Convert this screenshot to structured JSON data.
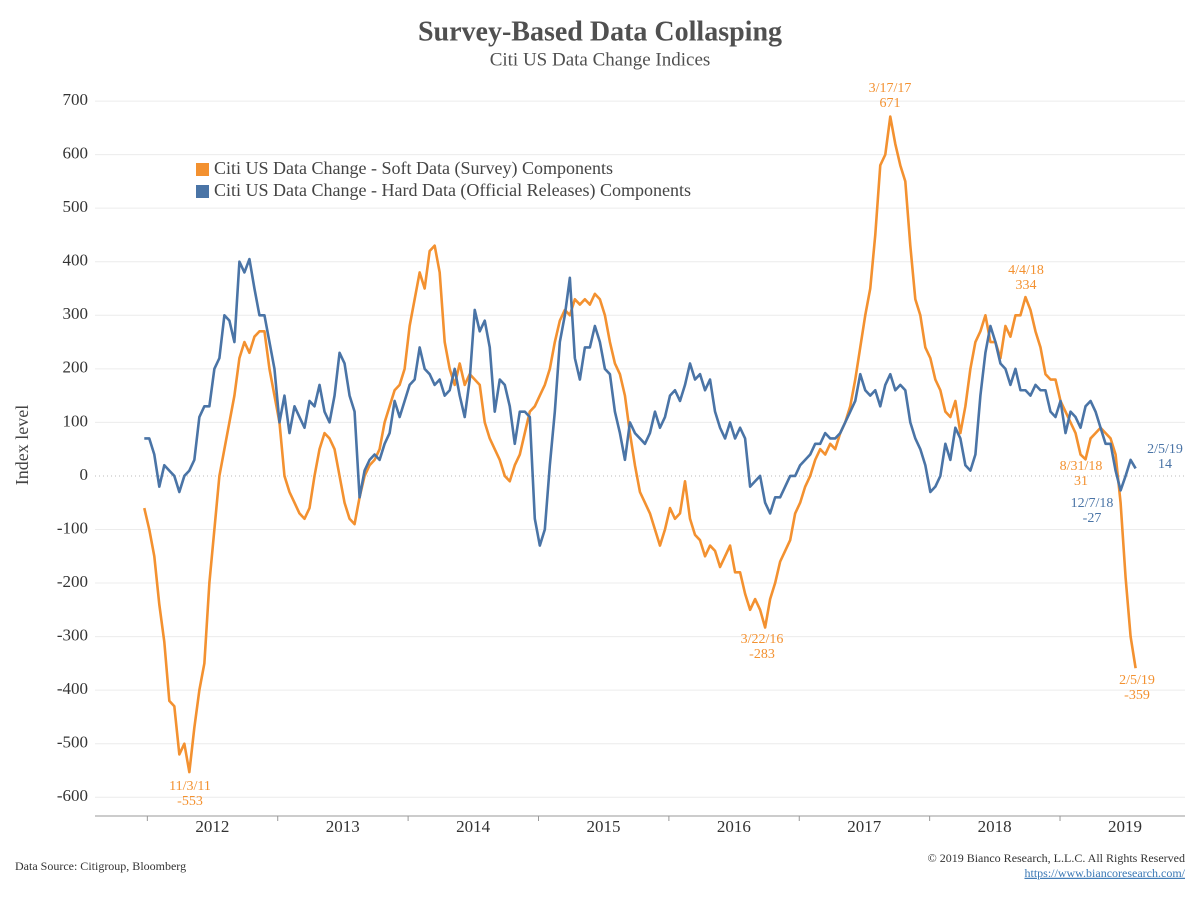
{
  "chart_data": {
    "type": "line",
    "title": "Survey-Based Data Collasping",
    "subtitle": "Citi US Data Change Indices",
    "y_label": "Index level",
    "source": "Data Source: Citigroup, Bloomberg",
    "copyright": "© 2019 Bianco Research, L.L.C. All Rights Reserved",
    "url": "https://www.biancoresearch.com/",
    "xlim": [
      2011.1,
      2019.46
    ],
    "xticks": [
      2012,
      2013,
      2014,
      2015,
      2016,
      2017,
      2018,
      2019
    ],
    "ylim": [
      -635,
      730
    ],
    "yticks": [
      -600,
      -500,
      -400,
      -300,
      -200,
      -100,
      0,
      100,
      200,
      300,
      400,
      500,
      600,
      700
    ],
    "grid": true,
    "legend": "upper left",
    "x": [
      2011.478,
      2011.5164,
      2011.5548,
      2011.5932,
      2011.6316,
      2011.67,
      2011.7084,
      2011.7468,
      2011.7852,
      2011.8236,
      2011.862,
      2011.9004,
      2011.9388,
      2011.9772,
      2012.0156,
      2012.054,
      2012.0924,
      2012.1308,
      2012.1692,
      2012.2076,
      2012.246,
      2012.2844,
      2012.3228,
      2012.3612,
      2012.3996,
      2012.438,
      2012.4764,
      2012.5148,
      2012.5532,
      2012.5916,
      2012.63,
      2012.6684,
      2012.7068,
      2012.7452,
      2012.7836,
      2012.822,
      2012.8604,
      2012.8988,
      2012.9372,
      2012.9756,
      2013.014,
      2013.0524,
      2013.0908,
      2013.1292,
      2013.1676,
      2013.206,
      2013.2444,
      2013.2828,
      2013.3212,
      2013.3596,
      2013.398,
      2013.4364,
      2013.4748,
      2013.5132,
      2013.5516,
      2013.59,
      2013.6284,
      2013.6668,
      2013.7052,
      2013.7436,
      2013.782,
      2013.8204,
      2013.8588,
      2013.8972,
      2013.9356,
      2013.974,
      2014.0124,
      2014.0508,
      2014.0892,
      2014.1276,
      2014.166,
      2014.2044,
      2014.2428,
      2014.2812,
      2014.3196,
      2014.358,
      2014.3964,
      2014.4348,
      2014.4732,
      2014.5116,
      2014.55,
      2014.5884,
      2014.6268,
      2014.6652,
      2014.7036,
      2014.742,
      2014.7804,
      2014.8188,
      2014.8572,
      2014.8956,
      2014.934,
      2014.9724,
      2015.0108,
      2015.0492,
      2015.0876,
      2015.126,
      2015.1644,
      2015.2028,
      2015.2412,
      2015.2796,
      2015.318,
      2015.3564,
      2015.3948,
      2015.4332,
      2015.4716,
      2015.51,
      2015.5484,
      2015.5868,
      2015.6252,
      2015.6636,
      2015.702,
      2015.7404,
      2015.7788,
      2015.8172,
      2015.8556,
      2015.894,
      2015.9324,
      2015.9708,
      2016.0092,
      2016.0476,
      2016.086,
      2016.1244,
      2016.1628,
      2016.2012,
      2016.2396,
      2016.278,
      2016.3164,
      2016.3548,
      2016.3932,
      2016.4316,
      2016.47,
      2016.5084,
      2016.5468,
      2016.5852,
      2016.6236,
      2016.662,
      2016.7004,
      2016.7388,
      2016.7772,
      2016.8156,
      2016.854,
      2016.8924,
      2016.9308,
      2016.9692,
      2017.0076,
      2017.046,
      2017.0844,
      2017.1228,
      2017.1612,
      2017.1996,
      2017.238,
      2017.2764,
      2017.3148,
      2017.3532,
      2017.3916,
      2017.43,
      2017.4684,
      2017.5068,
      2017.5452,
      2017.5836,
      2017.622,
      2017.6604,
      2017.6988,
      2017.7372,
      2017.7756,
      2017.814,
      2017.8524,
      2017.8908,
      2017.9292,
      2017.9676,
      2018.006,
      2018.0444,
      2018.0828,
      2018.1212,
      2018.1596,
      2018.198,
      2018.2364,
      2018.2748,
      2018.3132,
      2018.3516,
      2018.39,
      2018.4284,
      2018.4668,
      2018.5052,
      2018.5436,
      2018.582,
      2018.6204,
      2018.6588,
      2018.6972,
      2018.7356,
      2018.774,
      2018.8124,
      2018.8508,
      2018.8892,
      2018.9276,
      2018.966,
      2019.0044,
      2019.0428,
      2019.0812
    ],
    "series": [
      {
        "name": "Citi US Data Change - Soft Data (Survey) Components",
        "color": "#f39130",
        "values": [
          -60,
          -100,
          -150,
          -240,
          -310,
          -420,
          -430,
          -520,
          -500,
          -553,
          -470,
          -400,
          -350,
          -200,
          -100,
          0,
          50,
          100,
          150,
          220,
          250,
          230,
          260,
          270,
          270,
          200,
          150,
          100,
          0,
          -30,
          -50,
          -70,
          -80,
          -60,
          0,
          50,
          80,
          70,
          50,
          0,
          -50,
          -80,
          -90,
          -40,
          0,
          20,
          30,
          50,
          100,
          130,
          160,
          170,
          200,
          280,
          330,
          380,
          350,
          420,
          430,
          380,
          250,
          200,
          170,
          210,
          170,
          190,
          180,
          170,
          100,
          70,
          50,
          30,
          0,
          -10,
          20,
          40,
          80,
          120,
          130,
          150,
          170,
          200,
          250,
          290,
          310,
          300,
          330,
          320,
          330,
          320,
          340,
          330,
          300,
          250,
          210,
          190,
          150,
          80,
          20,
          -30,
          -50,
          -70,
          -100,
          -130,
          -100,
          -60,
          -80,
          -70,
          -10,
          -80,
          -110,
          -120,
          -150,
          -130,
          -140,
          -170,
          -150,
          -130,
          -180,
          -180,
          -220,
          -250,
          -230,
          -250,
          -283,
          -230,
          -200,
          -160,
          -140,
          -120,
          -70,
          -50,
          -20,
          0,
          30,
          50,
          40,
          60,
          50,
          80,
          100,
          130,
          180,
          240,
          300,
          350,
          450,
          580,
          600,
          671,
          620,
          580,
          550,
          430,
          330,
          300,
          240,
          220,
          180,
          160,
          120,
          110,
          140,
          80,
          130,
          200,
          250,
          270,
          300,
          250,
          250,
          220,
          280,
          260,
          300,
          300,
          334,
          310,
          270,
          240,
          190,
          180,
          180,
          140,
          120,
          100,
          80,
          40,
          31,
          70,
          80,
          90,
          80,
          70,
          40,
          -50,
          -190,
          -300,
          -359
        ]
      },
      {
        "name": "Citi US Data Change - Hard Data (Official Releases) Components",
        "color": "#4a74a6",
        "values": [
          70,
          70,
          40,
          -20,
          20,
          10,
          0,
          -30,
          0,
          10,
          30,
          110,
          130,
          130,
          200,
          220,
          300,
          290,
          250,
          400,
          380,
          405,
          350,
          300,
          300,
          250,
          200,
          100,
          150,
          80,
          130,
          110,
          90,
          140,
          130,
          170,
          120,
          100,
          150,
          230,
          210,
          150,
          120,
          -40,
          10,
          30,
          40,
          30,
          60,
          80,
          140,
          110,
          140,
          170,
          180,
          240,
          200,
          190,
          170,
          180,
          150,
          160,
          200,
          150,
          110,
          180,
          310,
          270,
          290,
          240,
          120,
          180,
          170,
          130,
          60,
          120,
          120,
          110,
          -80,
          -130,
          -100,
          20,
          120,
          250,
          300,
          370,
          220,
          180,
          240,
          240,
          280,
          250,
          200,
          190,
          120,
          80,
          30,
          100,
          80,
          70,
          60,
          80,
          120,
          90,
          110,
          150,
          160,
          140,
          170,
          210,
          180,
          190,
          160,
          180,
          120,
          90,
          70,
          100,
          70,
          90,
          70,
          -20,
          -10,
          0,
          -50,
          -70,
          -40,
          -40,
          -20,
          0,
          0,
          20,
          30,
          40,
          60,
          60,
          80,
          70,
          70,
          80,
          100,
          120,
          140,
          190,
          160,
          150,
          160,
          130,
          170,
          190,
          160,
          170,
          160,
          100,
          70,
          50,
          20,
          -30,
          -20,
          0,
          60,
          30,
          90,
          70,
          20,
          10,
          40,
          150,
          230,
          280,
          250,
          210,
          200,
          170,
          200,
          160,
          160,
          150,
          170,
          160,
          160,
          120,
          110,
          140,
          80,
          120,
          110,
          90,
          130,
          140,
          120,
          90,
          60,
          60,
          10,
          -27,
          0,
          30,
          14
        ]
      }
    ],
    "annotations": [
      {
        "date": "11/3/11",
        "value": -553,
        "color": "#f39130"
      },
      {
        "date": "3/22/16",
        "value": -283,
        "color": "#f39130"
      },
      {
        "date": "3/17/17",
        "value": 671,
        "color": "#f39130"
      },
      {
        "date": "4/4/18",
        "value": 334,
        "color": "#f39130"
      },
      {
        "date": "8/31/18",
        "value": 31,
        "color": "#f39130"
      },
      {
        "date": "12/7/18",
        "value": -27,
        "color": "#4a74a6"
      },
      {
        "date": "2/5/19",
        "value": -359,
        "color": "#f39130"
      },
      {
        "date": "2/5/19",
        "value": 14,
        "color": "#4a74a6"
      }
    ]
  }
}
